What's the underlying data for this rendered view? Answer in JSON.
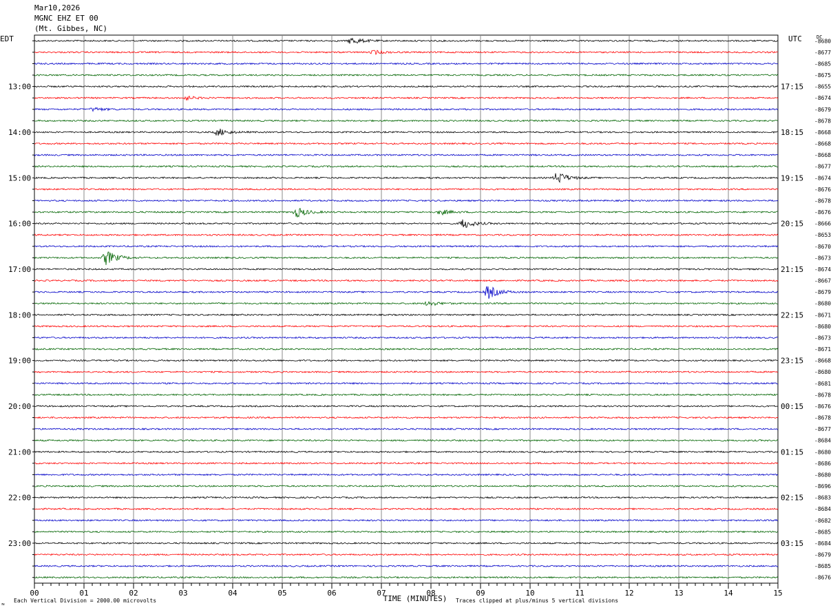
{
  "header": {
    "date": "Mar10,2026",
    "station": "MGNC EHZ ET 00",
    "location": "(Mt. Gibbes, NC)"
  },
  "left_timezone": "EDT",
  "right_timezone": "UTC",
  "dc_label": "DC",
  "footer": {
    "scale_note": "Each Vertical Division = 2000.00 microvolts",
    "clip_note": "Traces clipped at plus/minus 5 vertical divisions",
    "corner_mark": "≈"
  },
  "colors": {
    "black": "#000000",
    "red": "#ff0000",
    "blue": "#0000c8",
    "green": "#006400",
    "grid": "#888888"
  },
  "chart_data": {
    "type": "line",
    "xlabel": "TIME (MINUTES)",
    "xlim": [
      0,
      15
    ],
    "x_ticks": [
      "00",
      "01",
      "02",
      "03",
      "04",
      "05",
      "06",
      "07",
      "08",
      "09",
      "10",
      "11",
      "12",
      "13",
      "14",
      "15"
    ],
    "trace_colors": [
      "black",
      "red",
      "blue",
      "green"
    ],
    "left_hour_labels": [
      "13:00",
      "14:00",
      "15:00",
      "16:00",
      "17:00",
      "18:00",
      "19:00",
      "20:00",
      "21:00",
      "22:00",
      "23:00"
    ],
    "right_hour_labels": [
      "17:15",
      "18:15",
      "19:15",
      "20:15",
      "21:15",
      "22:15",
      "23:15",
      "00:15",
      "01:15",
      "02:15",
      "03:15"
    ],
    "dc_offsets": [
      "-8680",
      "-8677",
      "-8685",
      "-8675",
      "-8655",
      "-8674",
      "-8679",
      "-8678",
      "-8668",
      "-8668",
      "-8668",
      "-8677",
      "-8674",
      "-8676",
      "-8678",
      "-8676",
      "-8666",
      "-8653",
      "-8670",
      "-8673",
      "-8674",
      "-8667",
      "-8679",
      "-8680",
      "-8671",
      "-8680",
      "-8673",
      "-8671",
      "-8668",
      "-8680",
      "-8681",
      "-8678",
      "-8676",
      "-8678",
      "-8677",
      "-8684",
      "-8680",
      "-8686",
      "-8680",
      "-8696",
      "-8683",
      "-8684",
      "-8682",
      "-8685",
      "-8684",
      "-8679",
      "-8685",
      "-8676"
    ],
    "events": [
      {
        "trace": 0,
        "minute": 6.4,
        "amplitude": 0.6
      },
      {
        "trace": 1,
        "minute": 6.85,
        "amplitude": 0.3
      },
      {
        "trace": 5,
        "minute": 3.05,
        "amplitude": 0.3
      },
      {
        "trace": 6,
        "minute": 1.2,
        "amplitude": 0.3
      },
      {
        "trace": 8,
        "minute": 3.7,
        "amplitude": 0.6
      },
      {
        "trace": 12,
        "minute": 10.55,
        "amplitude": 1.0
      },
      {
        "trace": 15,
        "minute": 5.3,
        "amplitude": 0.8
      },
      {
        "trace": 15,
        "minute": 8.2,
        "amplitude": 0.4
      },
      {
        "trace": 16,
        "minute": 8.65,
        "amplitude": 0.8
      },
      {
        "trace": 19,
        "minute": 1.45,
        "amplitude": 1.2
      },
      {
        "trace": 22,
        "minute": 9.15,
        "amplitude": 1.1
      },
      {
        "trace": 23,
        "minute": 7.95,
        "amplitude": 0.4
      }
    ]
  }
}
